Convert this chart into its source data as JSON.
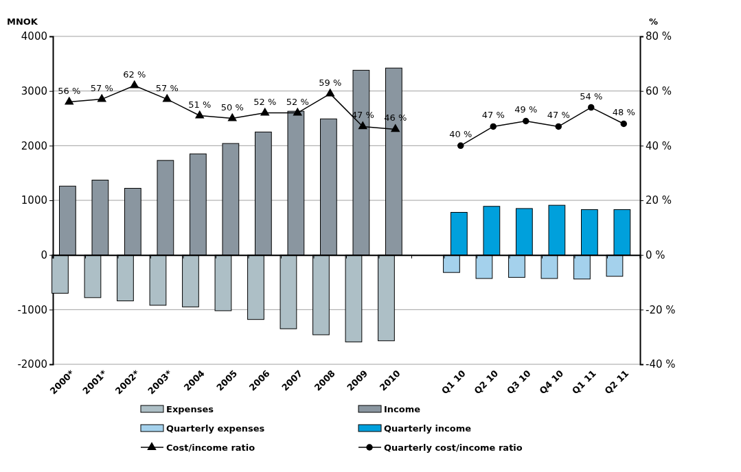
{
  "chart_data": {
    "type": "bar",
    "ylabel": "MNOK",
    "y2label": "%",
    "categories": [
      "2000*",
      "2001*",
      "2002*",
      "2003*",
      "2004",
      "2005",
      "2006",
      "2007",
      "2008",
      "2009",
      "2010",
      null,
      "Q1 10",
      "Q2 10",
      "Q3 10",
      "Q4 10",
      "Q1 11",
      "Q2 11"
    ],
    "series": [
      {
        "name": "Expenses",
        "color": "#adbfc6",
        "values": [
          -700,
          -780,
          -840,
          -920,
          -950,
          -1020,
          -1180,
          -1350,
          -1460,
          -1590,
          -1570,
          null,
          null,
          null,
          null,
          null,
          null,
          null
        ]
      },
      {
        "name": "Income",
        "color": "#8a96a0",
        "values": [
          1260,
          1370,
          1220,
          1730,
          1850,
          2040,
          2250,
          2630,
          2490,
          3380,
          3420,
          null,
          null,
          null,
          null,
          null,
          null,
          null
        ]
      },
      {
        "name": "Quarterly expenses",
        "color": "#a4d1ec",
        "values": [
          null,
          null,
          null,
          null,
          null,
          null,
          null,
          null,
          null,
          null,
          null,
          null,
          -320,
          -430,
          -410,
          -430,
          -440,
          -390
        ]
      },
      {
        "name": "Quarterly income",
        "color": "#00a0dc",
        "values": [
          null,
          null,
          null,
          null,
          null,
          null,
          null,
          null,
          null,
          null,
          null,
          null,
          780,
          890,
          850,
          910,
          830,
          830
        ]
      },
      {
        "name": "Cost/income ratio",
        "type": "line",
        "axis": "y2",
        "marker": "triangle",
        "color": "#000000",
        "values": [
          56,
          57,
          62,
          57,
          51,
          50,
          52,
          52,
          59,
          47,
          46,
          null,
          null,
          null,
          null,
          null,
          null,
          null
        ],
        "value_labels": [
          "56 %",
          "57 %",
          "62 %",
          "57 %",
          "51 %",
          "50 %",
          "52 %",
          "52 %",
          "59 %",
          "47 %",
          "46 %",
          null,
          null,
          null,
          null,
          null,
          null,
          null
        ]
      },
      {
        "name": "Quarterly cost/income ratio",
        "type": "line",
        "axis": "y2",
        "marker": "circle",
        "color": "#000000",
        "values": [
          null,
          null,
          null,
          null,
          null,
          null,
          null,
          null,
          null,
          null,
          null,
          null,
          40,
          47,
          49,
          47,
          54,
          48
        ],
        "value_labels": [
          null,
          null,
          null,
          null,
          null,
          null,
          null,
          null,
          null,
          null,
          null,
          null,
          "40 %",
          "47 %",
          "49 %",
          "47 %",
          "54 %",
          "48 %"
        ]
      }
    ],
    "ylim": [
      -2000,
      4000
    ],
    "yticks": [
      -2000,
      -1000,
      0,
      1000,
      2000,
      3000,
      4000
    ],
    "y2lim": [
      -40,
      80
    ],
    "y2ticks": [
      {
        "value": -40,
        "label": "-40 %"
      },
      {
        "value": -20,
        "label": "-20 %"
      },
      {
        "value": 0,
        "label": "0 %"
      },
      {
        "value": 20,
        "label": "20 %"
      },
      {
        "value": 40,
        "label": "40 %"
      },
      {
        "value": 60,
        "label": "60 %"
      },
      {
        "value": 80,
        "label": "80 %"
      }
    ],
    "grid": "y",
    "legend": "bottom"
  }
}
